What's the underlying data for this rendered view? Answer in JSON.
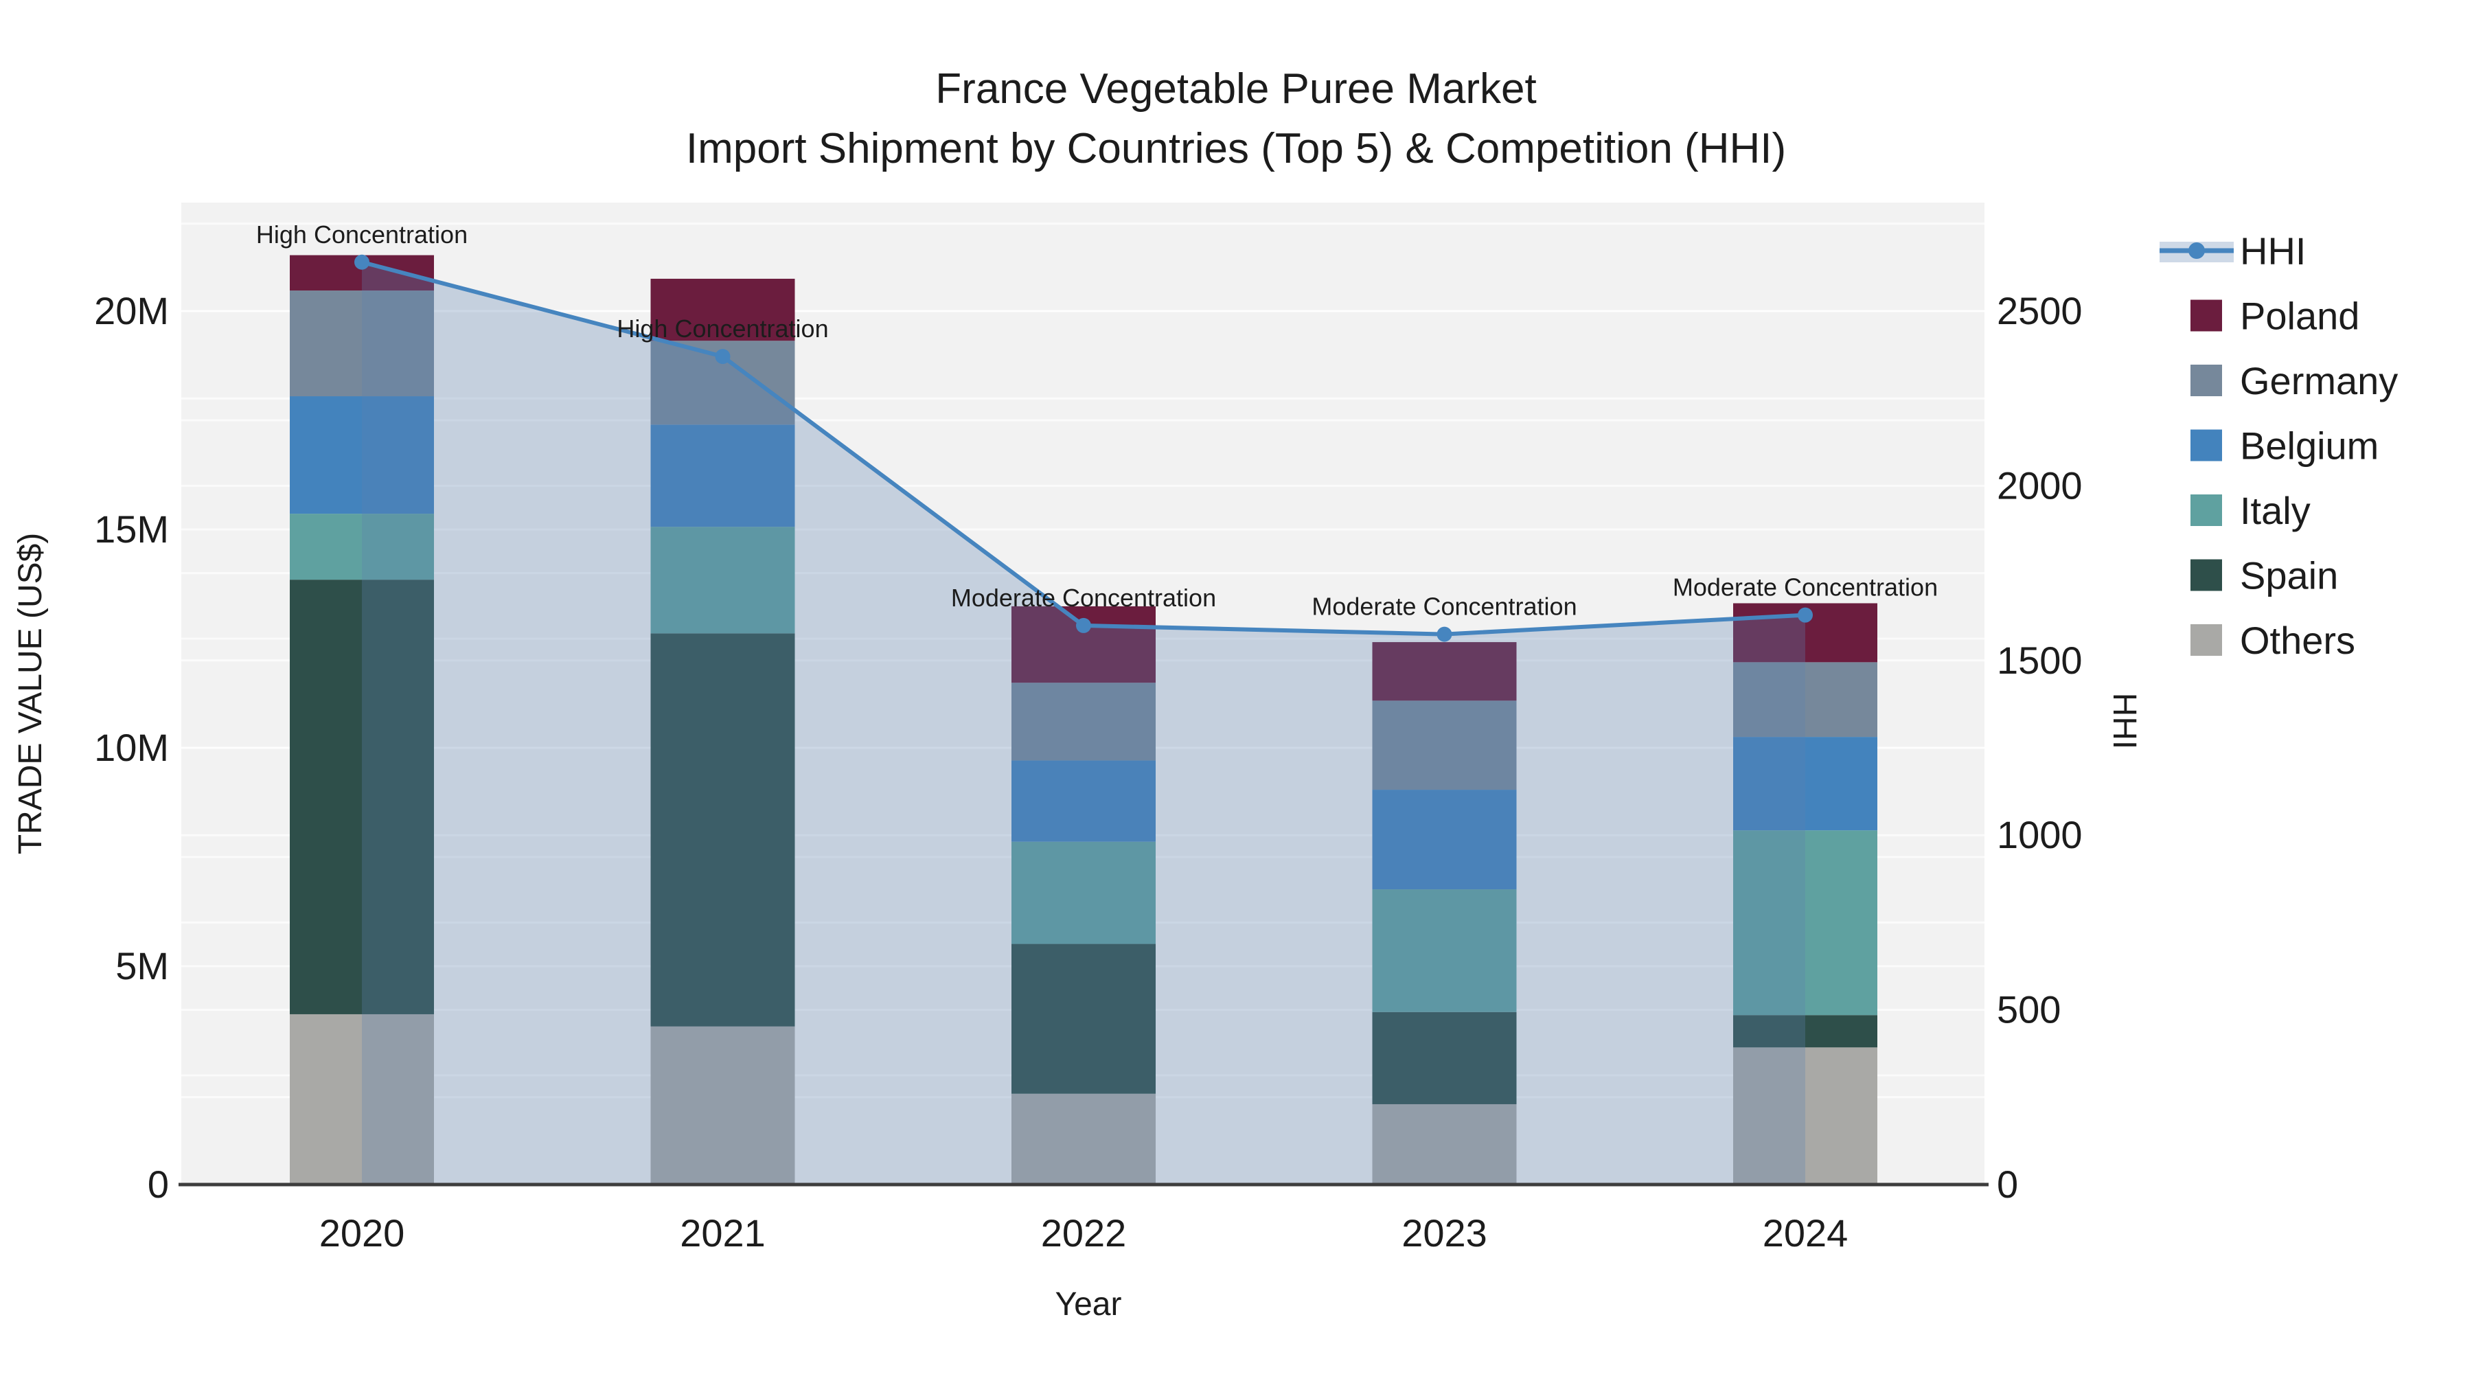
{
  "chart_data": {
    "type": "bar",
    "subtype": "stacked-bar-with-line-overlay",
    "title": "France Vegetable Puree Market",
    "subtitle": "Import Shipment by Countries (Top 5) & Competition (HHI)",
    "xlabel": "Year",
    "ylabel_left": "TRADE VALUE (US$)",
    "ylabel_right": "HHI",
    "values_unit": "M US$",
    "categories": [
      "2020",
      "2021",
      "2022",
      "2023",
      "2024"
    ],
    "stack_order_bottom_to_top": [
      "Others",
      "Spain",
      "Italy",
      "Belgium",
      "Germany",
      "Poland"
    ],
    "series": [
      {
        "name": "Poland",
        "color": "#6b1d3e",
        "values": [
          0.81,
          1.42,
          1.75,
          1.34,
          1.35
        ]
      },
      {
        "name": "Germany",
        "color": "#76889b",
        "values": [
          2.42,
          1.92,
          1.78,
          2.04,
          1.71
        ]
      },
      {
        "name": "Belgium",
        "color": "#4383bd",
        "values": [
          2.69,
          2.34,
          1.86,
          2.28,
          2.14
        ]
      },
      {
        "name": "Italy",
        "color": "#5fa1a0",
        "values": [
          1.51,
          2.44,
          2.34,
          2.81,
          4.23
        ]
      },
      {
        "name": "Spain",
        "color": "#2e4f4a",
        "values": [
          9.95,
          9.0,
          3.43,
          2.11,
          0.74
        ]
      },
      {
        "name": "Others",
        "color": "#a9a9a6",
        "values": [
          3.9,
          3.62,
          2.08,
          1.84,
          3.14
        ]
      }
    ],
    "bar_totals": [
      21.28,
      20.74,
      13.24,
      12.42,
      13.31
    ],
    "line_series": {
      "name": "HHI",
      "color": "#4685bf",
      "area_fill": "rgba(93,130,176,0.30)",
      "values": [
        2640,
        2370,
        1600,
        1575,
        1630
      ]
    },
    "annotations": [
      {
        "x": "2020",
        "text": "High Concentration"
      },
      {
        "x": "2021",
        "text": "High Concentration"
      },
      {
        "x": "2022",
        "text": "Moderate Concentration"
      },
      {
        "x": "2023",
        "text": "Moderate Concentration"
      },
      {
        "x": "2024",
        "text": "Moderate Concentration"
      }
    ],
    "y_left": {
      "ticks": [
        "0",
        "5M",
        "10M",
        "15M",
        "20M"
      ],
      "tick_values": [
        0,
        5,
        10,
        15,
        20
      ],
      "max": 22.5,
      "grid_step": 2.5
    },
    "y_right": {
      "ticks": [
        "0",
        "500",
        "1000",
        "1500",
        "2000",
        "2500"
      ],
      "tick_values": [
        0,
        500,
        1000,
        1500,
        2000,
        2500
      ],
      "max": 2810,
      "grid_step": 250
    },
    "legend": [
      "HHI",
      "Poland",
      "Germany",
      "Belgium",
      "Italy",
      "Spain",
      "Others"
    ],
    "colors": {
      "plot_background": "#f2f2f2",
      "gridline": "#ffffff",
      "axis_line": "#3d3d3d",
      "text": "#1c1c1c"
    },
    "legend_position": "right",
    "grid_on": true
  }
}
